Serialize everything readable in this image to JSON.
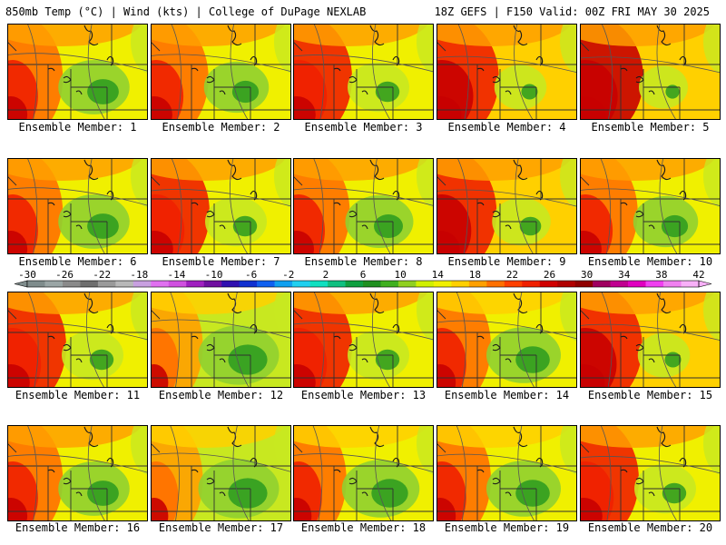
{
  "header": {
    "left_title": "850mb Temp (°C) | Wind (kts) | College of DuPage NEXLAB",
    "right_title": "18Z GEFS | F150 Valid: 00Z FRI MAY 30 2025"
  },
  "members": [
    {
      "label": "Ensemble Member: 1"
    },
    {
      "label": "Ensemble Member: 2"
    },
    {
      "label": "Ensemble Member: 3"
    },
    {
      "label": "Ensemble Member: 4"
    },
    {
      "label": "Ensemble Member: 5"
    },
    {
      "label": "Ensemble Member: 6"
    },
    {
      "label": "Ensemble Member: 7"
    },
    {
      "label": "Ensemble Member: 8"
    },
    {
      "label": "Ensemble Member: 9"
    },
    {
      "label": "Ensemble Member: 10"
    },
    {
      "label": "Ensemble Member: 11"
    },
    {
      "label": "Ensemble Member: 12"
    },
    {
      "label": "Ensemble Member: 13"
    },
    {
      "label": "Ensemble Member: 14"
    },
    {
      "label": "Ensemble Member: 15"
    },
    {
      "label": "Ensemble Member: 16"
    },
    {
      "label": "Ensemble Member: 17"
    },
    {
      "label": "Ensemble Member: 18"
    },
    {
      "label": "Ensemble Member: 19"
    },
    {
      "label": "Ensemble Member: 20"
    }
  ],
  "colorbar": {
    "ticks": [
      "-30",
      "-26",
      "-22",
      "-18",
      "-14",
      "-10",
      "-6",
      "-2",
      "2",
      "6",
      "10",
      "14",
      "18",
      "22",
      "26",
      "30",
      "34",
      "38",
      "42"
    ],
    "colors": [
      "#7f8c8c",
      "#9aa5a5",
      "#8a8a8a",
      "#6e6e6e",
      "#9a9a9a",
      "#b8b8b8",
      "#c8a0e0",
      "#e070f0",
      "#d050e0",
      "#a020c0",
      "#7010a0",
      "#3010b0",
      "#1030d0",
      "#1060f0",
      "#10a0f0",
      "#20d0f0",
      "#10e0c0",
      "#10c080",
      "#10a040",
      "#209020",
      "#40b020",
      "#90d020",
      "#d0f000",
      "#f0f000",
      "#ffd000",
      "#ffa000",
      "#ff7000",
      "#ff4000",
      "#f02000",
      "#d00000",
      "#b00000",
      "#900000",
      "#a00060",
      "#c00090",
      "#e000c0",
      "#f040f0",
      "#f080f0",
      "#f8b0f8"
    ]
  }
}
